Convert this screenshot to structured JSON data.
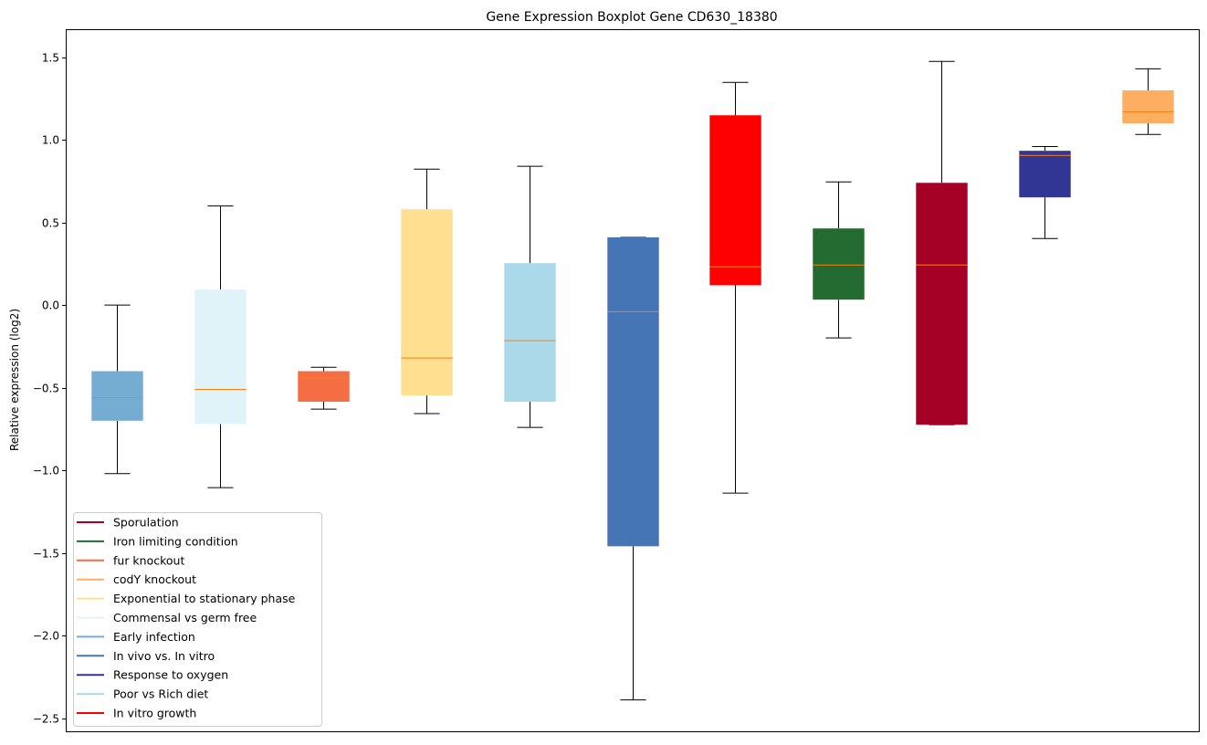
{
  "chart_data": {
    "type": "boxplot",
    "title": "Gene Expression Boxplot Gene CD630_18380",
    "xlabel": "",
    "ylabel": "Relative expression (log2)",
    "ylim": [
      -2.58,
      1.67
    ],
    "yticks": [
      1.5,
      1.0,
      0.5,
      0.0,
      -0.5,
      -1.0,
      -1.5,
      -2.0,
      -2.5
    ],
    "ytick_labels": [
      "1.5",
      "1.0",
      "0.5",
      "0.0",
      "−0.5",
      "−1.0",
      "−1.5",
      "−2.0",
      "−2.5"
    ],
    "grid": false,
    "legend_position": "lower-left",
    "median_color": "#ff7f0e",
    "boxes": [
      {
        "name": "Early infection",
        "color": "#74add1",
        "whislo": -1.02,
        "q1": -0.7,
        "median": -0.56,
        "q3": -0.4,
        "whishi": 0.0
      },
      {
        "name": "Commensal vs germ free",
        "color": "#e0f3f8",
        "whislo": -1.105,
        "q1": -0.72,
        "median": -0.51,
        "q3": 0.094,
        "whishi": 0.6
      },
      {
        "name": "fur knockout",
        "color": "#f46d43",
        "whislo": -0.63,
        "q1": -0.585,
        "median": -0.44,
        "q3": -0.4,
        "whishi": -0.376
      },
      {
        "name": "Exponential to stationary phase",
        "color": "#fee090",
        "whislo": -0.657,
        "q1": -0.547,
        "median": -0.32,
        "q3": 0.58,
        "whishi": 0.823
      },
      {
        "name": "Poor vs Rich diet",
        "color": "#abd9e9",
        "whislo": -0.74,
        "q1": -0.585,
        "median": -0.215,
        "q3": 0.254,
        "whishi": 0.84
      },
      {
        "name": "In vivo vs. In vitro",
        "color": "#4575b4",
        "whislo": -2.39,
        "q1": -1.46,
        "median": -0.04,
        "q3": 0.41,
        "whishi": 0.41
      },
      {
        "name": "In vitro growth",
        "color": "#ff0000",
        "whislo": -1.138,
        "q1": 0.12,
        "median": 0.232,
        "q3": 1.149,
        "whishi": 1.348
      },
      {
        "name": "Iron limiting condition",
        "color": "#236b30",
        "whislo": -0.199,
        "q1": 0.033,
        "median": 0.243,
        "q3": 0.464,
        "whishi": 0.746
      },
      {
        "name": "Sporulation",
        "color": "#a50026",
        "whislo": -0.724,
        "q1": -0.724,
        "median": 0.243,
        "q3": 0.74,
        "whishi": 1.475
      },
      {
        "name": "Response to oxygen",
        "color": "#313695",
        "whislo": 0.403,
        "q1": 0.652,
        "median": 0.906,
        "q3": 0.934,
        "whishi": 0.96
      },
      {
        "name": "codY knockout",
        "color": "#fdae61",
        "whislo": 1.033,
        "q1": 1.1,
        "median": 1.17,
        "q3": 1.3,
        "whishi": 1.43
      }
    ],
    "legend": [
      {
        "label": "Sporulation",
        "color": "#a50026"
      },
      {
        "label": "Iron limiting condition",
        "color": "#236b30"
      },
      {
        "label": "fur knockout",
        "color": "#f46d43"
      },
      {
        "label": "codY knockout",
        "color": "#fdae61"
      },
      {
        "label": "Exponential to stationary phase",
        "color": "#fee090"
      },
      {
        "label": "Commensal vs germ free",
        "color": "#e0f3f8"
      },
      {
        "label": "Early infection",
        "color": "#74add1"
      },
      {
        "label": "In vivo vs. In vitro",
        "color": "#4575b4"
      },
      {
        "label": "Response to oxygen",
        "color": "#313695"
      },
      {
        "label": "Poor vs Rich diet",
        "color": "#abd9e9"
      },
      {
        "label": "In vitro growth",
        "color": "#ff0000"
      }
    ]
  }
}
